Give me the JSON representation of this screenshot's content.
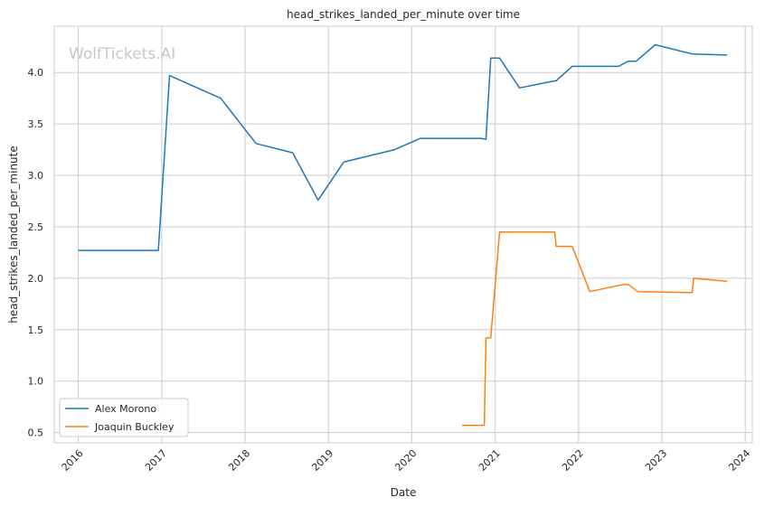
{
  "chart_data": {
    "type": "line",
    "title": "head_strikes_landed_per_minute over time",
    "xlabel": "Date",
    "ylabel": "head_strikes_landed_per_minute",
    "watermark": "WolfTickets.AI",
    "xlim": [
      "2015-09-18",
      "2024-02-01"
    ],
    "ylim": [
      0.4,
      4.45
    ],
    "x_ticks": [
      "2016",
      "2017",
      "2018",
      "2019",
      "2020",
      "2021",
      "2022",
      "2023",
      "2024"
    ],
    "y_ticks": [
      "0.5",
      "1.0",
      "1.5",
      "2.0",
      "2.5",
      "3.0",
      "3.5",
      "4.0"
    ],
    "grid": true,
    "legend_position": "bottom-left",
    "series": [
      {
        "name": "Alex Morono",
        "color": "#1f77b4",
        "points": [
          [
            "2016-01-01",
            2.27
          ],
          [
            "2016-12-17",
            2.27
          ],
          [
            "2017-02-04",
            3.97
          ],
          [
            "2017-09-16",
            3.75
          ],
          [
            "2018-02-18",
            3.31
          ],
          [
            "2018-07-28",
            3.22
          ],
          [
            "2018-11-17",
            2.76
          ],
          [
            "2019-03-09",
            3.13
          ],
          [
            "2019-10-18",
            3.25
          ],
          [
            "2020-02-08",
            3.36
          ],
          [
            "2020-10-31",
            3.36
          ],
          [
            "2020-11-21",
            3.35
          ],
          [
            "2020-12-12",
            4.14
          ],
          [
            "2021-01-20",
            4.14
          ],
          [
            "2021-04-17",
            3.85
          ],
          [
            "2021-08-28",
            3.91
          ],
          [
            "2021-09-25",
            3.92
          ],
          [
            "2021-12-04",
            4.06
          ],
          [
            "2022-06-25",
            4.06
          ],
          [
            "2022-08-06",
            4.11
          ],
          [
            "2022-09-10",
            4.11
          ],
          [
            "2022-12-03",
            4.27
          ],
          [
            "2023-05-13",
            4.18
          ],
          [
            "2023-10-14",
            4.17
          ]
        ]
      },
      {
        "name": "Joaquin Buckley",
        "color": "#ff7f0e",
        "points": [
          [
            "2020-08-08",
            0.57
          ],
          [
            "2020-11-14",
            0.57
          ],
          [
            "2020-11-21",
            1.42
          ],
          [
            "2020-12-12",
            1.42
          ],
          [
            "2021-01-20",
            2.45
          ],
          [
            "2021-09-18",
            2.45
          ],
          [
            "2021-09-25",
            2.31
          ],
          [
            "2021-12-04",
            2.31
          ],
          [
            "2022-02-19",
            1.87
          ],
          [
            "2022-07-16",
            1.94
          ],
          [
            "2022-08-06",
            1.94
          ],
          [
            "2022-09-17",
            1.87
          ],
          [
            "2023-05-13",
            1.86
          ],
          [
            "2023-05-20",
            2.0
          ],
          [
            "2023-10-14",
            1.97
          ]
        ]
      }
    ]
  }
}
